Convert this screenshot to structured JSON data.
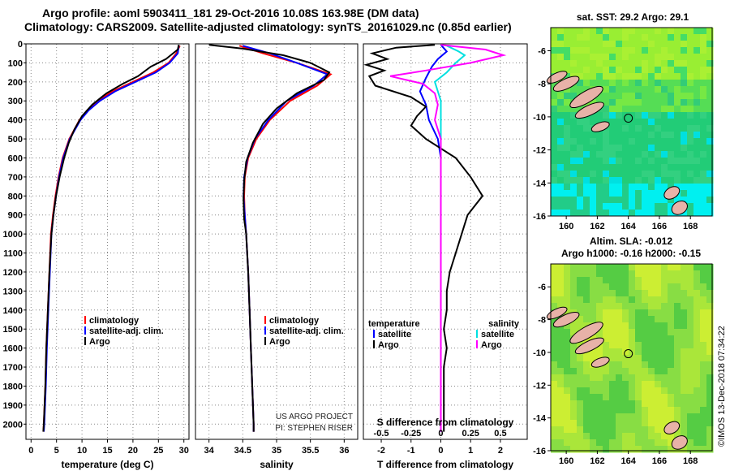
{
  "header": {
    "title_line1": "Argo profile: aoml 5903411_181 29-Oct-2016 10.08S 163.98E (DM data)",
    "title_line2": "Climatology: CARS2009. Satellite-adjusted climatology: synTS_20161029.nc (0.85d earlier)"
  },
  "chart_data": [
    {
      "id": "temperature",
      "type": "line",
      "xlabel": "temperature (deg C)",
      "xlim": [
        -1,
        31
      ],
      "ylim": [
        2080,
        0
      ],
      "xticks": [
        0,
        5,
        10,
        15,
        20,
        25,
        30
      ],
      "yticks": [
        0,
        100,
        200,
        300,
        400,
        500,
        600,
        700,
        800,
        900,
        1000,
        1100,
        1200,
        1300,
        1400,
        1500,
        1600,
        1700,
        1800,
        1900,
        2000
      ],
      "legend": [
        "climatology",
        "satellite-adj. clim.",
        "Argo"
      ],
      "series": [
        {
          "name": "climatology",
          "color": "#ff0000",
          "points": [
            [
              29.2,
              10
            ],
            [
              28.5,
              50
            ],
            [
              27.0,
              100
            ],
            [
              24.0,
              150
            ],
            [
              20.0,
              200
            ],
            [
              16.0,
              250
            ],
            [
              13.0,
              300
            ],
            [
              11.0,
              350
            ],
            [
              9.5,
              400
            ],
            [
              7.5,
              500
            ],
            [
              6.2,
              600
            ],
            [
              5.4,
              700
            ],
            [
              4.8,
              800
            ],
            [
              4.3,
              900
            ],
            [
              3.9,
              1000
            ],
            [
              3.6,
              1200
            ],
            [
              3.3,
              1400
            ],
            [
              3.0,
              1600
            ],
            [
              2.8,
              1800
            ],
            [
              2.5,
              2000
            ],
            [
              2.4,
              2040
            ]
          ]
        },
        {
          "name": "satellite-adj. clim.",
          "color": "#0000ff",
          "points": [
            [
              29.0,
              10
            ],
            [
              28.8,
              50
            ],
            [
              27.2,
              100
            ],
            [
              24.5,
              150
            ],
            [
              20.5,
              200
            ],
            [
              16.5,
              250
            ],
            [
              13.5,
              300
            ],
            [
              11.3,
              350
            ],
            [
              9.7,
              400
            ],
            [
              7.6,
              500
            ],
            [
              6.3,
              600
            ],
            [
              5.5,
              700
            ],
            [
              4.9,
              800
            ],
            [
              4.4,
              900
            ],
            [
              4.0,
              1000
            ],
            [
              3.7,
              1200
            ],
            [
              3.4,
              1400
            ],
            [
              3.1,
              1600
            ],
            [
              2.9,
              1800
            ],
            [
              2.6,
              2000
            ],
            [
              2.5,
              2040
            ]
          ]
        },
        {
          "name": "Argo",
          "color": "#000000",
          "points": [
            [
              29.0,
              5
            ],
            [
              28.8,
              30
            ],
            [
              26.5,
              80
            ],
            [
              23.5,
              120
            ],
            [
              21.0,
              170
            ],
            [
              18.0,
              210
            ],
            [
              14.8,
              260
            ],
            [
              12.0,
              320
            ],
            [
              10.0,
              380
            ],
            [
              8.5,
              450
            ],
            [
              7.4,
              520
            ],
            [
              6.5,
              600
            ],
            [
              5.6,
              700
            ],
            [
              4.9,
              800
            ],
            [
              4.4,
              900
            ],
            [
              4.0,
              1000
            ],
            [
              3.6,
              1200
            ],
            [
              3.3,
              1400
            ],
            [
              3.0,
              1600
            ],
            [
              2.8,
              1800
            ],
            [
              2.5,
              2000
            ],
            [
              2.4,
              2040
            ]
          ]
        }
      ]
    },
    {
      "id": "salinity",
      "type": "line",
      "xlabel": "salinity",
      "xlim": [
        33.8,
        36.2
      ],
      "ylim": [
        2080,
        0
      ],
      "xticks": [
        34,
        34.5,
        35,
        35.5,
        36
      ],
      "legend": [
        "climatology",
        "satellite-adj. clim.",
        "Argo"
      ],
      "credits": [
        "US ARGO PROJECT",
        "PI: STEPHEN RISER"
      ],
      "series": [
        {
          "name": "climatology",
          "color": "#ff0000",
          "points": [
            [
              34.45,
              10
            ],
            [
              34.8,
              50
            ],
            [
              35.3,
              100
            ],
            [
              35.8,
              160
            ],
            [
              35.6,
              220
            ],
            [
              35.2,
              300
            ],
            [
              34.9,
              400
            ],
            [
              34.7,
              500
            ],
            [
              34.58,
              600
            ],
            [
              34.53,
              700
            ],
            [
              34.52,
              800
            ],
            [
              34.53,
              900
            ],
            [
              34.55,
              1000
            ],
            [
              34.58,
              1200
            ],
            [
              34.6,
              1400
            ],
            [
              34.62,
              1600
            ],
            [
              34.64,
              1800
            ],
            [
              34.66,
              2000
            ],
            [
              34.66,
              2040
            ]
          ]
        },
        {
          "name": "satellite-adj. clim.",
          "color": "#0000ff",
          "points": [
            [
              34.5,
              10
            ],
            [
              34.9,
              50
            ],
            [
              35.3,
              100
            ],
            [
              35.75,
              160
            ],
            [
              35.55,
              220
            ],
            [
              35.15,
              300
            ],
            [
              34.88,
              400
            ],
            [
              34.68,
              500
            ],
            [
              34.57,
              600
            ],
            [
              34.52,
              700
            ],
            [
              34.51,
              800
            ],
            [
              34.53,
              900
            ],
            [
              34.55,
              1000
            ],
            [
              34.58,
              1200
            ],
            [
              34.6,
              1400
            ],
            [
              34.62,
              1600
            ],
            [
              34.64,
              1800
            ],
            [
              34.66,
              2000
            ],
            [
              34.66,
              2040
            ]
          ]
        },
        {
          "name": "Argo",
          "color": "#000000",
          "points": [
            [
              34.0,
              5
            ],
            [
              34.5,
              25
            ],
            [
              35.1,
              60
            ],
            [
              35.5,
              100
            ],
            [
              35.78,
              150
            ],
            [
              35.7,
              190
            ],
            [
              35.3,
              260
            ],
            [
              35.0,
              340
            ],
            [
              34.8,
              420
            ],
            [
              34.65,
              520
            ],
            [
              34.55,
              620
            ],
            [
              34.52,
              720
            ],
            [
              34.51,
              820
            ],
            [
              34.52,
              920
            ],
            [
              34.55,
              1000
            ],
            [
              34.58,
              1200
            ],
            [
              34.6,
              1400
            ],
            [
              34.62,
              1600
            ],
            [
              34.64,
              1800
            ],
            [
              34.66,
              2000
            ],
            [
              34.66,
              2040
            ]
          ]
        }
      ]
    },
    {
      "id": "difference",
      "type": "line",
      "xlabel": "T difference from climatology",
      "xlabel_top": "S difference from climatology",
      "xlim": [
        -2.6,
        2.9
      ],
      "ylim": [
        2080,
        0
      ],
      "xticks": [
        -2,
        -1,
        0,
        1,
        2
      ],
      "xticks_top": [
        "-0.5",
        "-0.25",
        "0",
        "0.25",
        "0.5"
      ],
      "legend_left_title": "temperature",
      "legend_right_title": "salinity",
      "legend_left": [
        "satellite",
        "Argo"
      ],
      "legend_right": [
        "satellite",
        "Argo"
      ],
      "series": [
        {
          "name": "T satellite",
          "color": "#0000ff",
          "points": [
            [
              0,
              5
            ],
            [
              0.2,
              40
            ],
            [
              -0.1,
              80
            ],
            [
              -0.3,
              120
            ],
            [
              -0.5,
              180
            ],
            [
              -0.7,
              250
            ],
            [
              -0.5,
              320
            ],
            [
              -0.4,
              400
            ],
            [
              -0.1,
              500
            ],
            [
              0,
              600
            ],
            [
              0,
              800
            ],
            [
              0,
              1000
            ],
            [
              0,
              1200
            ],
            [
              0,
              1400
            ],
            [
              0,
              1600
            ],
            [
              0,
              1800
            ],
            [
              0,
              2000
            ],
            [
              0,
              2040
            ]
          ]
        },
        {
          "name": "T Argo",
          "color": "#000000",
          "points": [
            [
              -0.2,
              5
            ],
            [
              -1.5,
              20
            ],
            [
              -2.3,
              50
            ],
            [
              -1.8,
              80
            ],
            [
              -2.5,
              110
            ],
            [
              -1.9,
              140
            ],
            [
              -2.4,
              170
            ],
            [
              -2.2,
              220
            ],
            [
              -1.0,
              280
            ],
            [
              -0.5,
              330
            ],
            [
              -0.8,
              380
            ],
            [
              -1.0,
              430
            ],
            [
              -0.5,
              500
            ],
            [
              0.5,
              600
            ],
            [
              1.0,
              700
            ],
            [
              1.4,
              800
            ],
            [
              0.9,
              900
            ],
            [
              0.7,
              1000
            ],
            [
              0.5,
              1100
            ],
            [
              0.3,
              1200
            ],
            [
              0.2,
              1300
            ],
            [
              0.2,
              1400
            ],
            [
              0.1,
              1500
            ],
            [
              0.2,
              1600
            ],
            [
              0.1,
              1700
            ],
            [
              0.1,
              1800
            ],
            [
              0.1,
              1900
            ],
            [
              0.1,
              2000
            ],
            [
              0.1,
              2040
            ]
          ]
        },
        {
          "name": "S satellite",
          "color": "#00e0e0",
          "points": [
            [
              0.2,
              10
            ],
            [
              0.6,
              40
            ],
            [
              0.8,
              60
            ],
            [
              0.5,
              100
            ],
            [
              0.2,
              150
            ],
            [
              -0.2,
              200
            ],
            [
              -0.1,
              250
            ],
            [
              0,
              300
            ],
            [
              0.0,
              400
            ],
            [
              0,
              600
            ],
            [
              0,
              1000
            ],
            [
              0,
              1400
            ],
            [
              0,
              1800
            ],
            [
              0,
              2040
            ]
          ]
        },
        {
          "name": "S Argo",
          "color": "#ff00ff",
          "points": [
            [
              0,
              5
            ],
            [
              1.5,
              30
            ],
            [
              2.1,
              60
            ],
            [
              1.0,
              100
            ],
            [
              -0.5,
              140
            ],
            [
              -1.7,
              170
            ],
            [
              -0.6,
              210
            ],
            [
              -0.2,
              260
            ],
            [
              -0.1,
              320
            ],
            [
              -0.2,
              400
            ],
            [
              0,
              500
            ],
            [
              0,
              700
            ],
            [
              0,
              1000
            ],
            [
              0,
              1400
            ],
            [
              0,
              1800
            ],
            [
              0,
              2040
            ]
          ]
        }
      ]
    },
    {
      "id": "sst_map",
      "type": "heatmap",
      "title": "sat. SST: 29.2  Argo: 29.1",
      "xticks": [
        160,
        162,
        164,
        166,
        168
      ],
      "yticks": [
        -6,
        -8,
        -10,
        -12,
        -14,
        -16
      ],
      "xlim": [
        159,
        169.4
      ],
      "ylim": [
        -16,
        -4.6
      ],
      "marker": [
        164,
        -10.08
      ]
    },
    {
      "id": "sla_map",
      "type": "heatmap",
      "title_line1": "Altim. SLA: -0.012",
      "title_line2": "Argo h1000: -0.16 h2000: -0.15",
      "xticks": [
        160,
        162,
        164,
        166,
        168
      ],
      "yticks": [
        -6,
        -8,
        -10,
        -12,
        -14,
        -16
      ],
      "xlim": [
        159,
        169.4
      ],
      "ylim": [
        -16,
        -4.6
      ],
      "marker": [
        164,
        -10.08
      ]
    }
  ],
  "footer": {
    "credit_vertical": "©IMOS 13-Dec-2018 07:34:22"
  }
}
